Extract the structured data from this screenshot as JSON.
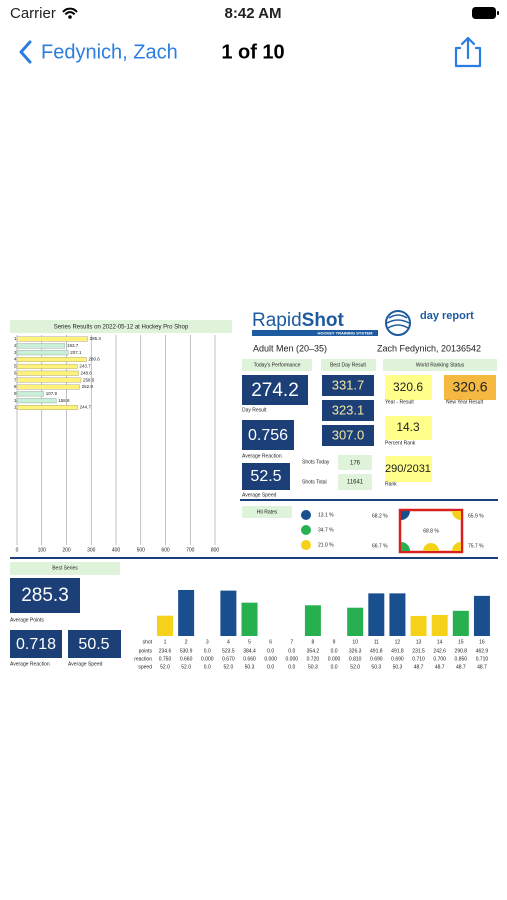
{
  "status_bar": {
    "carrier": "Carrier",
    "time": "8:42 AM"
  },
  "nav": {
    "back_label": "Fedynich, Zach",
    "position": "1 of 10"
  },
  "report": {
    "series_chart": {
      "title": "Series Results on 2022-05-12 at Hockey Pro Shop",
      "rows": [
        "1",
        "2",
        "3",
        "4",
        "5",
        "6",
        "7",
        "8",
        "9",
        "10",
        "11"
      ],
      "values": [
        285.3,
        193.7,
        207.1,
        280.6,
        243.7,
        248.6,
        258.5,
        252.9,
        107.9,
        158.8,
        244.7
      ],
      "colors": [
        "#fff27a",
        "#c8f0d8",
        "#c8f0d8",
        "#fff27a",
        "#fff27a",
        "#fff27a",
        "#fff27a",
        "#fff27a",
        "#c8f0d8",
        "#c8f0d8",
        "#fff27a"
      ],
      "xlim": [
        0,
        800
      ],
      "xticks": [
        0,
        100,
        200,
        300,
        400,
        500,
        600,
        700,
        800
      ],
      "grid": true
    },
    "logo": {
      "brand_light": "Rapid",
      "brand_bold": "Shot",
      "tagline": "HOCKEY TRAINING SYSTEM",
      "label": "day report"
    },
    "category": "Adult Men (20–35)",
    "player": "Zach Fedynich, 20136542",
    "todays_performance": {
      "title": "Today's Performance",
      "day_result": {
        "value": "274.2",
        "label": "Day Result"
      },
      "average_reaction": {
        "value": "0.756",
        "label": "Average Reaction"
      },
      "average_speed": {
        "value": "52.5",
        "label": "Average Speed"
      }
    },
    "best_day_result": {
      "title": "Best Day Result",
      "values": [
        "331.7",
        "323.1",
        "307.0"
      ]
    },
    "shots": {
      "today_label": "Shots Today",
      "today": "176",
      "total_label": "Shots Total",
      "total": "11641"
    },
    "world_ranking": {
      "title": "World Ranking Status",
      "year_result": {
        "value": "320.6",
        "label": "Year - Result"
      },
      "new_year_result": {
        "value": "320.6",
        "label": "New Year Result"
      },
      "percent_rank": {
        "value": "14.3",
        "label": "Percent Rank"
      },
      "rank": {
        "value": "290/2031",
        "label": "Rank"
      }
    },
    "hit_rates": {
      "title": "Hit Rates",
      "legend": [
        "13.1 %",
        "34.7 %",
        "21.0 %"
      ],
      "legend_colors": [
        "#1a4f8f",
        "#27b050",
        "#f5d11a"
      ],
      "goal": {
        "top_left": "68.2 %",
        "top_right": "65.9 %",
        "center": "68.8 %",
        "bottom_left": "66.7 %",
        "bottom_right": "75.7 %"
      }
    },
    "best_series": {
      "title": "Best Series",
      "average_points": {
        "value": "285.3",
        "label": "Average Points"
      },
      "average_reaction": {
        "value": "0.718",
        "label": "Average Reaction"
      },
      "average_speed": {
        "value": "50.5",
        "label": "Average Speed"
      }
    },
    "shot_chart": {
      "row_labels": [
        "shot",
        "points",
        "reaction",
        "speed"
      ],
      "shots": [
        1,
        2,
        3,
        4,
        5,
        6,
        7,
        8,
        9,
        10,
        11,
        12,
        13,
        14,
        15,
        16
      ],
      "values": [
        234.6,
        530.9,
        0,
        523.5,
        384.4,
        0,
        0,
        354.2,
        0,
        326.3,
        491.8,
        491.8,
        231.5,
        242.6,
        290.8,
        462.9
      ],
      "value_labels": [
        "234.6",
        "530.9",
        "0.0",
        "523.5",
        "384.4",
        "0.0",
        "0.0",
        "354.2",
        "0.0",
        "326.3",
        "491.8",
        "491.8",
        "231.5",
        "242.6",
        "290.8",
        "462.9"
      ],
      "colors": [
        "#f5d11a",
        "#1a4f8f",
        null,
        "#1a4f8f",
        "#27b050",
        null,
        null,
        "#27b050",
        null,
        "#27b050",
        "#1a4f8f",
        "#1a4f8f",
        "#f5d11a",
        "#f5d11a",
        "#27b050",
        "#1a4f8f"
      ],
      "reaction": [
        "0.750",
        "0.660",
        "0.000",
        "0.670",
        "0.660",
        "0.000",
        "0.000",
        "0.720",
        "0.000",
        "0.810",
        "0.690",
        "0.690",
        "0.710",
        "0.700",
        "0.850",
        "0.710"
      ],
      "speed": [
        "52.0",
        "52.0",
        "0.0",
        "52.0",
        "50.3",
        "0.0",
        "0.0",
        "50.3",
        "0.0",
        "52.0",
        "50.3",
        "50.3",
        "48.7",
        "48.7",
        "48.7",
        "48.7"
      ]
    }
  }
}
